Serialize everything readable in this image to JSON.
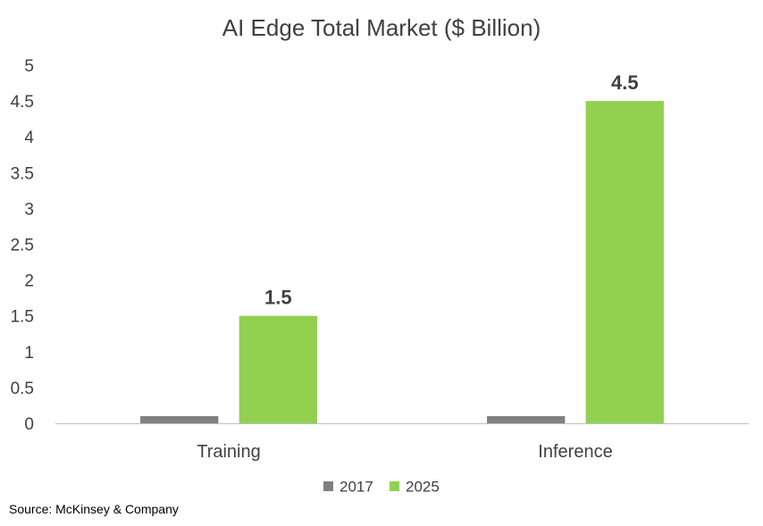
{
  "chart_data": {
    "type": "bar",
    "title": "AI Edge Total Market ($ Billion)",
    "categories": [
      "Training",
      "Inference"
    ],
    "series": [
      {
        "name": "2017",
        "values": [
          0.1,
          0.1
        ],
        "color": "#808080",
        "show_labels": false
      },
      {
        "name": "2025",
        "values": [
          1.5,
          4.5
        ],
        "color": "#92D050",
        "show_labels": true
      }
    ],
    "data_labels": [
      "1.5",
      "4.5"
    ],
    "ylim": [
      0,
      5
    ],
    "yticks": [
      "0",
      "0.5",
      "1",
      "1.5",
      "2",
      "2.5",
      "3",
      "3.5",
      "4",
      "4.5",
      "5"
    ],
    "grid": false,
    "legend": "bottom",
    "xlabel": "",
    "ylabel": ""
  },
  "footer": {
    "source": "Source: McKinsey & Company"
  }
}
